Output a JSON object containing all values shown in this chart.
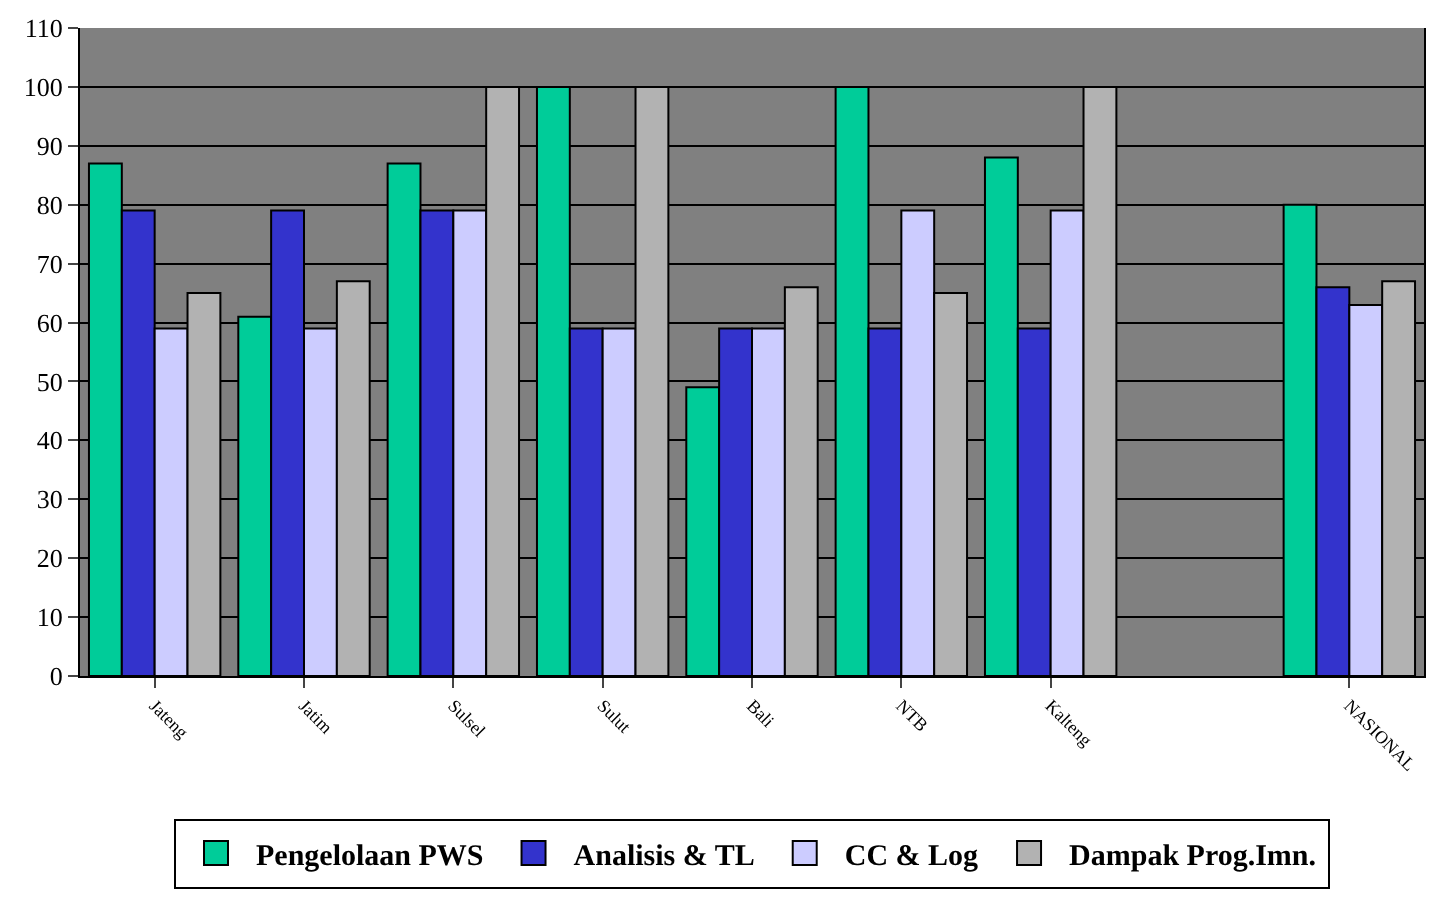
{
  "chart_data": {
    "type": "bar",
    "categories": [
      "Jateng",
      "Jatim",
      "Sulsel",
      "Sulut",
      "Bali",
      "NTB",
      "Kalteng",
      null,
      "NASIONAL"
    ],
    "series": [
      {
        "name": "Pengelolaan PWS",
        "color": "#00cc99",
        "values": [
          87,
          61,
          87,
          100,
          49,
          100,
          88,
          null,
          80
        ]
      },
      {
        "name": "Analisis & TL",
        "color": "#3333cc",
        "values": [
          79,
          79,
          79,
          59,
          59,
          59,
          59,
          null,
          66
        ]
      },
      {
        "name": "CC & Log",
        "color": "#ccccff",
        "values": [
          59,
          59,
          79,
          59,
          59,
          79,
          79,
          null,
          63
        ]
      },
      {
        "name": "Dampak Prog.Imn.",
        "color": "#b2b2b2",
        "values": [
          65,
          67,
          100,
          100,
          66,
          65,
          100,
          null,
          67
        ]
      }
    ],
    "ylim": [
      0,
      110
    ],
    "yticks": [
      0,
      10,
      20,
      30,
      40,
      50,
      60,
      70,
      80,
      90,
      100,
      110
    ],
    "grid": "y",
    "legend": "bottom"
  }
}
